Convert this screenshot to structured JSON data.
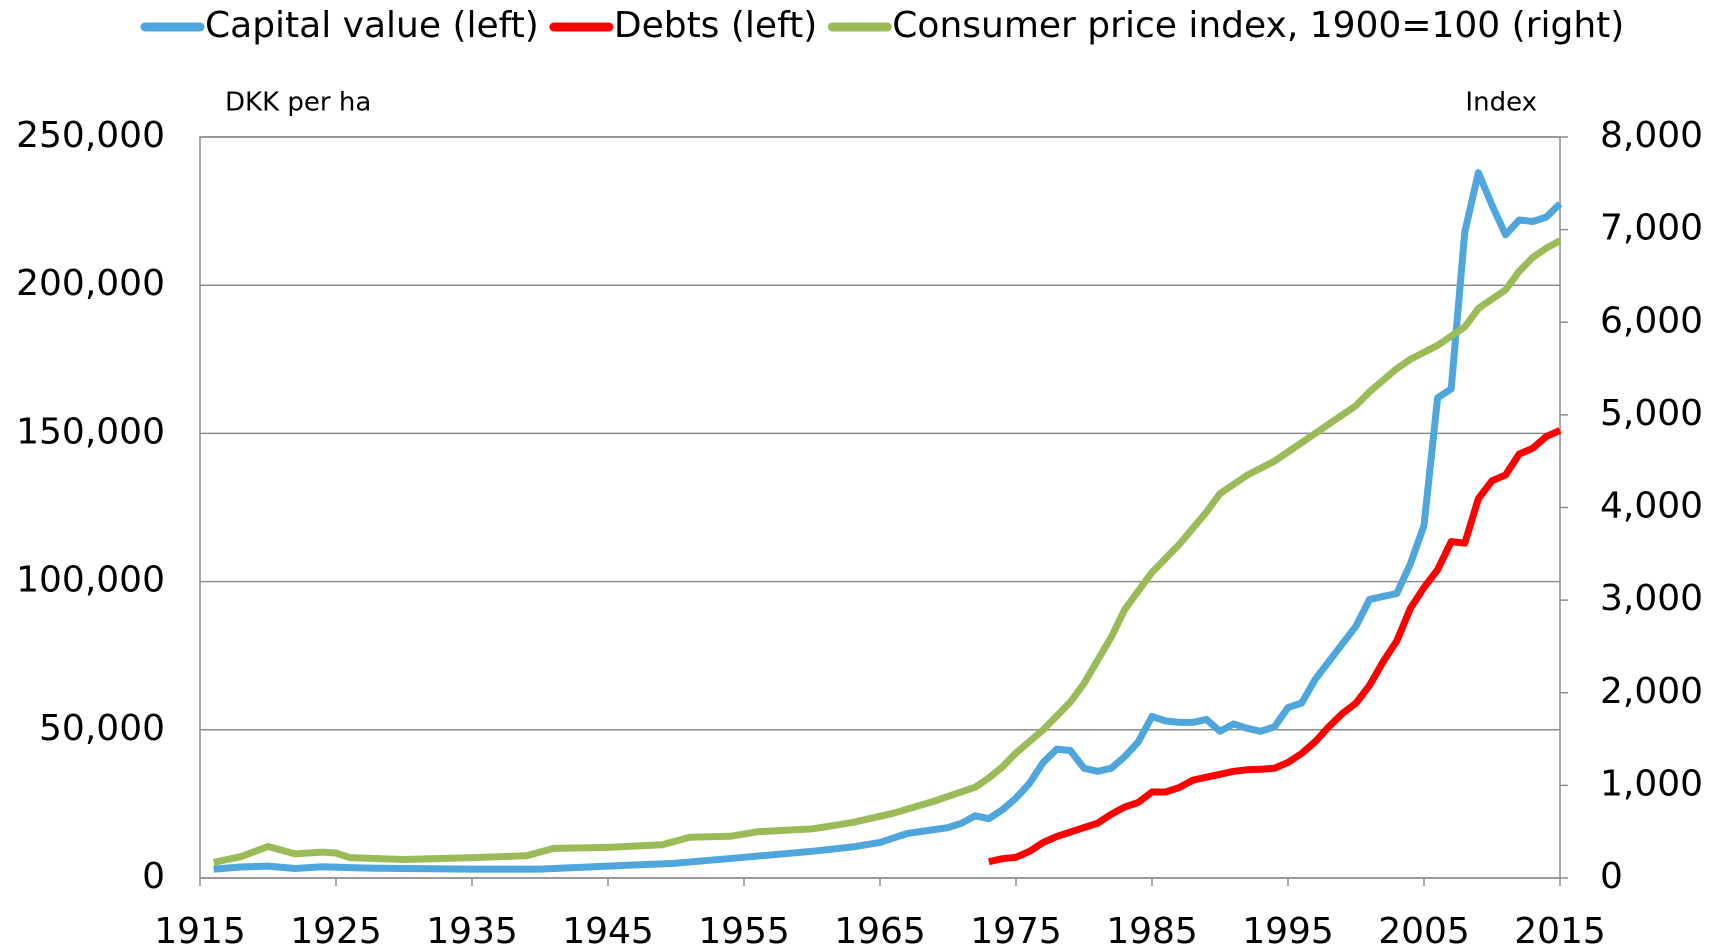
{
  "chart_data": {
    "type": "line",
    "y_label": "DKK per ha",
    "y2_label": "Index",
    "xlim": [
      1915,
      2015
    ],
    "xticks": [
      1915,
      1925,
      1935,
      1945,
      1955,
      1965,
      1975,
      1985,
      1995,
      2005,
      2015
    ],
    "ylim": [
      0,
      250000
    ],
    "yticks": [
      0,
      {
        "value": 50000,
        "label": "50,000"
      },
      {
        "value": 100000,
        "label": "100,000"
      },
      {
        "value": 150000,
        "label": "150,000"
      },
      {
        "value": 200000,
        "label": "200,000"
      },
      {
        "value": 250000,
        "label": "250,000"
      }
    ],
    "y2lim": [
      0,
      8000
    ],
    "y2ticks": [
      0,
      {
        "value": 1000,
        "label": "1,000"
      },
      {
        "value": 2000,
        "label": "2,000"
      },
      {
        "value": 3000,
        "label": "3,000"
      },
      {
        "value": 4000,
        "label": "4,000"
      },
      {
        "value": 5000,
        "label": "5,000"
      },
      {
        "value": 6000,
        "label": "6,000"
      },
      {
        "value": 7000,
        "label": "7,000"
      },
      {
        "value": 8000,
        "label": "8,000"
      }
    ],
    "grid": true,
    "legend": "top",
    "series": [
      {
        "name": "Capital value (left)",
        "color": "#4ea6dc",
        "axis": "y",
        "x": [
          1916,
          1918,
          1920,
          1922,
          1924,
          1926,
          1928,
          1930,
          1935,
          1940,
          1945,
          1950,
          1955,
          1960,
          1963,
          1965,
          1967,
          1970,
          1971,
          1972,
          1973,
          1974,
          1975,
          1976,
          1977,
          1978,
          1979,
          1980,
          1981,
          1982,
          1983,
          1984,
          1985,
          1986,
          1987,
          1988,
          1989,
          1990,
          1991,
          1992,
          1993,
          1994,
          1995,
          1996,
          1997,
          1998,
          1999,
          2000,
          2001,
          2002,
          2003,
          2004,
          2005,
          2006,
          2007,
          2008,
          2009,
          2010,
          2011,
          2012,
          2013,
          2014,
          2015
        ],
        "values": [
          3000,
          3700,
          4000,
          3200,
          3800,
          3500,
          3300,
          3200,
          3000,
          3000,
          4000,
          5000,
          7000,
          9000,
          10500,
          12000,
          15000,
          17000,
          18500,
          21000,
          20000,
          23000,
          27000,
          32000,
          39000,
          43500,
          43000,
          37000,
          36000,
          37000,
          41000,
          46000,
          54500,
          53000,
          52500,
          52500,
          53500,
          49500,
          52000,
          50500,
          49500,
          51000,
          57500,
          59000,
          67000,
          73000,
          79000,
          85000,
          94000,
          95000,
          96000,
          106000,
          119000,
          162000,
          165000,
          218000,
          238000,
          227000,
          217000,
          222000,
          221500,
          223000,
          227500
        ]
      },
      {
        "name": "Debts (left)",
        "color": "#ff0000",
        "axis": "y",
        "x": [
          1973,
          1974,
          1975,
          1976,
          1977,
          1978,
          1979,
          1980,
          1981,
          1982,
          1983,
          1984,
          1985,
          1986,
          1987,
          1988,
          1989,
          1990,
          1991,
          1992,
          1993,
          1994,
          1995,
          1996,
          1997,
          1998,
          1999,
          2000,
          2001,
          2002,
          2003,
          2004,
          2005,
          2006,
          2007,
          2008,
          2009,
          2010,
          2011,
          2012,
          2013,
          2014,
          2015
        ],
        "values": [
          5500,
          6500,
          7000,
          9000,
          12000,
          14000,
          15500,
          17000,
          18500,
          21500,
          24000,
          25500,
          29000,
          29000,
          30500,
          33000,
          34000,
          35000,
          36000,
          36500,
          36700,
          37000,
          39000,
          42000,
          46000,
          51000,
          55500,
          59000,
          65000,
          73000,
          80000,
          91000,
          98000,
          104000,
          113500,
          113000,
          128000,
          134000,
          136000,
          143000,
          145000,
          149000,
          151000
        ]
      },
      {
        "name": "Consumer price index, 1900=100 (right)",
        "color": "#9bbb59",
        "axis": "y2",
        "x": [
          1916,
          1918,
          1920,
          1922,
          1924,
          1925,
          1926,
          1930,
          1935,
          1939,
          1941,
          1945,
          1949,
          1951,
          1954,
          1956,
          1960,
          1963,
          1966,
          1969,
          1972,
          1973,
          1974,
          1975,
          1977,
          1979,
          1980,
          1982,
          1983,
          1985,
          1987,
          1989,
          1990,
          1992,
          1994,
          1996,
          1998,
          2000,
          2001,
          2003,
          2004,
          2006,
          2008,
          2009,
          2010,
          2011,
          2012,
          2013,
          2014,
          2015
        ],
        "values": [
          170,
          230,
          340,
          260,
          280,
          270,
          220,
          200,
          220,
          240,
          320,
          330,
          360,
          440,
          450,
          500,
          530,
          600,
          700,
          830,
          980,
          1080,
          1200,
          1350,
          1600,
          1900,
          2100,
          2600,
          2900,
          3300,
          3600,
          3950,
          4150,
          4350,
          4500,
          4700,
          4900,
          5100,
          5250,
          5500,
          5600,
          5750,
          5950,
          6150,
          6250,
          6350,
          6550,
          6700,
          6800,
          6880
        ]
      }
    ]
  }
}
